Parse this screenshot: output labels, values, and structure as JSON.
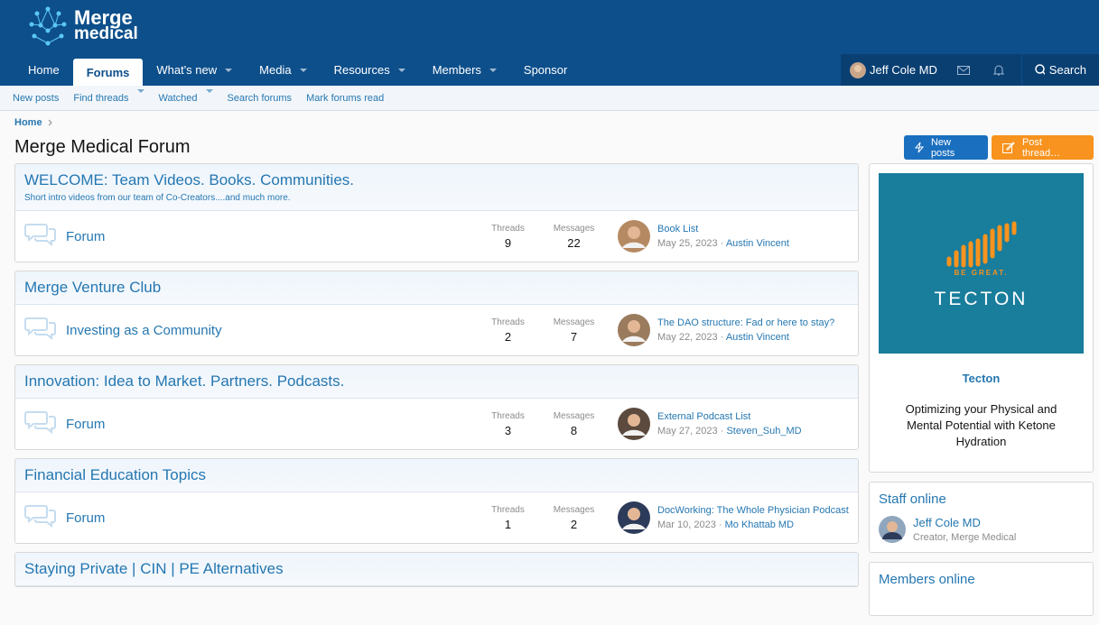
{
  "header": {
    "logo_line1": "Merge",
    "logo_line2": "medical"
  },
  "nav": {
    "items": [
      {
        "label": "Home"
      },
      {
        "label": "Forums",
        "active": true
      },
      {
        "label": "What's new",
        "dropdown": true
      },
      {
        "label": "Media",
        "dropdown": true
      },
      {
        "label": "Resources",
        "dropdown": true
      },
      {
        "label": "Members",
        "dropdown": true
      },
      {
        "label": "Sponsor"
      }
    ],
    "user": "Jeff Cole MD",
    "search": "Search"
  },
  "subnav": [
    {
      "label": "New posts"
    },
    {
      "label": "Find threads",
      "dropdown": true
    },
    {
      "label": "Watched",
      "dropdown": true
    },
    {
      "label": "Search forums"
    },
    {
      "label": "Mark forums read"
    }
  ],
  "breadcrumb": "Home",
  "page_title": "Merge Medical Forum",
  "buttons": {
    "new_posts": "New posts",
    "post_thread": "Post thread…"
  },
  "labels": {
    "threads": "Threads",
    "messages": "Messages"
  },
  "categories": [
    {
      "title": "WELCOME: Team Videos. Books. Communities.",
      "description": "Short intro videos from our team of Co-Creators....and much more.",
      "forums": [
        {
          "name": "Forum",
          "threads": 9,
          "messages": 22,
          "last_title": "Book List",
          "last_date": "May 25, 2023",
          "last_user": "Austin Vincent"
        }
      ]
    },
    {
      "title": "Merge Venture Club",
      "forums": [
        {
          "name": "Investing as a Community",
          "threads": 2,
          "messages": 7,
          "last_title": "The DAO structure: Fad or here to stay?",
          "last_date": "May 22, 2023",
          "last_user": "Austin Vincent"
        }
      ]
    },
    {
      "title": "Innovation: Idea to Market. Partners. Podcasts.",
      "forums": [
        {
          "name": "Forum",
          "threads": 3,
          "messages": 8,
          "last_title": "External Podcast List",
          "last_date": "May 27, 2023",
          "last_user": "Steven_Suh_MD"
        }
      ]
    },
    {
      "title": "Financial Education Topics",
      "forums": [
        {
          "name": "Forum",
          "threads": 1,
          "messages": 2,
          "last_title": "DocWorking: The Whole Physician Podcast",
          "last_date": "Mar 10, 2023",
          "last_user": "Mo Khattab MD"
        }
      ]
    },
    {
      "title": "Staying Private | CIN | PE Alternatives",
      "forums": []
    }
  ],
  "sidebar": {
    "ad": {
      "tagline": "BE GREAT.",
      "brand": "TECTON",
      "name": "Tecton",
      "description": "Optimizing your Physical and Mental Potential with Ketone Hydration"
    },
    "staff_online": {
      "title": "Staff online",
      "users": [
        {
          "name": "Jeff Cole MD",
          "title": "Creator, Merge Medical"
        }
      ]
    },
    "members_online": {
      "title": "Members online"
    }
  }
}
